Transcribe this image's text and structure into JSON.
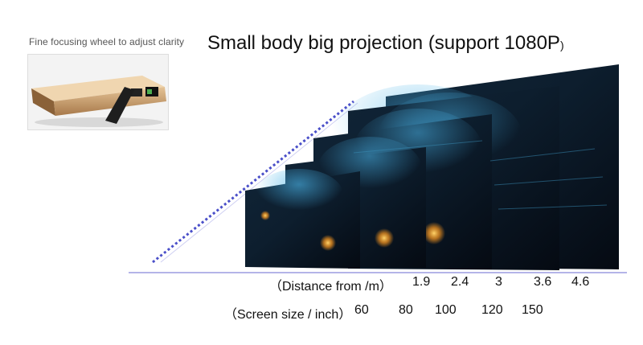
{
  "caption": "Fine focusing wheel to adjust clarity",
  "title": "Small body big projection (support 1080P",
  "title_tail": ")",
  "distance_label": "（Distance from /m）",
  "distances": [
    "1.9",
    "2.4",
    "3",
    "3.6",
    "4.6"
  ],
  "size_label": "（Screen size / inch）",
  "sizes": [
    "60",
    "80",
    "100",
    "120",
    "150"
  ],
  "colors": {
    "projector_body": "#c9a06a",
    "screen_dark": "#0b1622",
    "screen_glow": "#2f8fc4",
    "beam": "#4a4fc9"
  }
}
